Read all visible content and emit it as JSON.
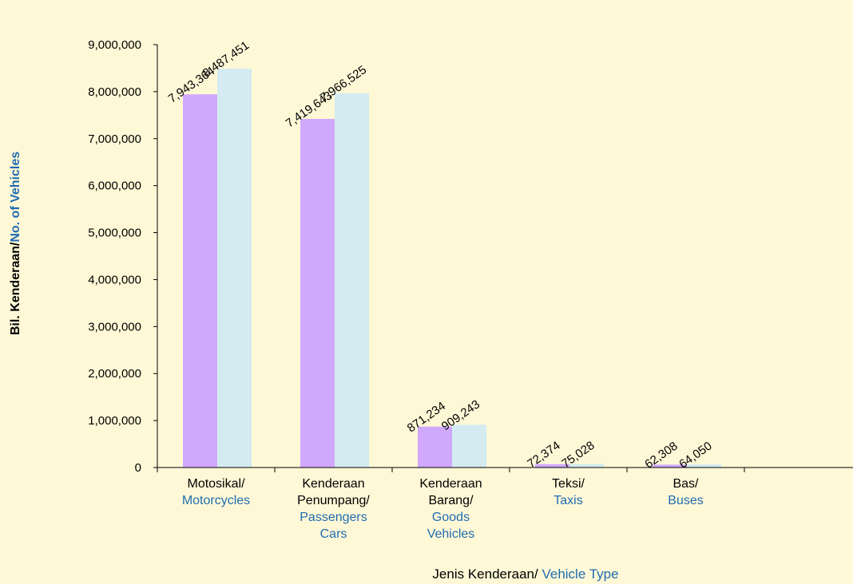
{
  "chart_data": {
    "type": "bar",
    "categories": [
      {
        "ms": [
          "Motosikal/"
        ],
        "en": [
          "Motorcycles"
        ]
      },
      {
        "ms": [
          "Kenderaan",
          "Penumpang/"
        ],
        "en": [
          "Passengers",
          "Cars"
        ]
      },
      {
        "ms": [
          "Kenderaan",
          "Barang/"
        ],
        "en": [
          "Goods",
          "Vehicles"
        ]
      },
      {
        "ms": [
          "Teksi/"
        ],
        "en": [
          "Taxis"
        ]
      },
      {
        "ms": [
          "Bas/"
        ],
        "en": [
          "Buses"
        ]
      }
    ],
    "series": [
      {
        "values": [
          7943364,
          7419643,
          871234,
          72374,
          62308
        ],
        "labels": [
          "7,943,364",
          "7,419,643",
          "871,234",
          "72,374",
          "62,308"
        ],
        "color": "#D1A9FC"
      },
      {
        "values": [
          8487451,
          7966525,
          909243,
          75028,
          64050
        ],
        "labels": [
          "8,487,451",
          "7,966,525",
          "909,243",
          "75,028",
          "64,050"
        ],
        "color": "#D3EBF1"
      }
    ],
    "ylim": [
      0,
      9000000
    ],
    "yticks": [
      0,
      1000000,
      2000000,
      3000000,
      4000000,
      5000000,
      6000000,
      7000000,
      8000000,
      9000000
    ],
    "ytick_labels": [
      "0",
      "1,000,000",
      "2,000,000",
      "3,000,000",
      "4,000,000",
      "5,000,000",
      "6,000,000",
      "7,000,000",
      "8,000,000",
      "9,000,000"
    ],
    "ylabel": {
      "ms": "Bil. Kenderaan/",
      "en": "No. of Vehicles"
    },
    "xlabel": {
      "ms": "Jenis Kenderaan/ ",
      "en": "Vehicle Type"
    },
    "grid": false,
    "legend": "none"
  }
}
